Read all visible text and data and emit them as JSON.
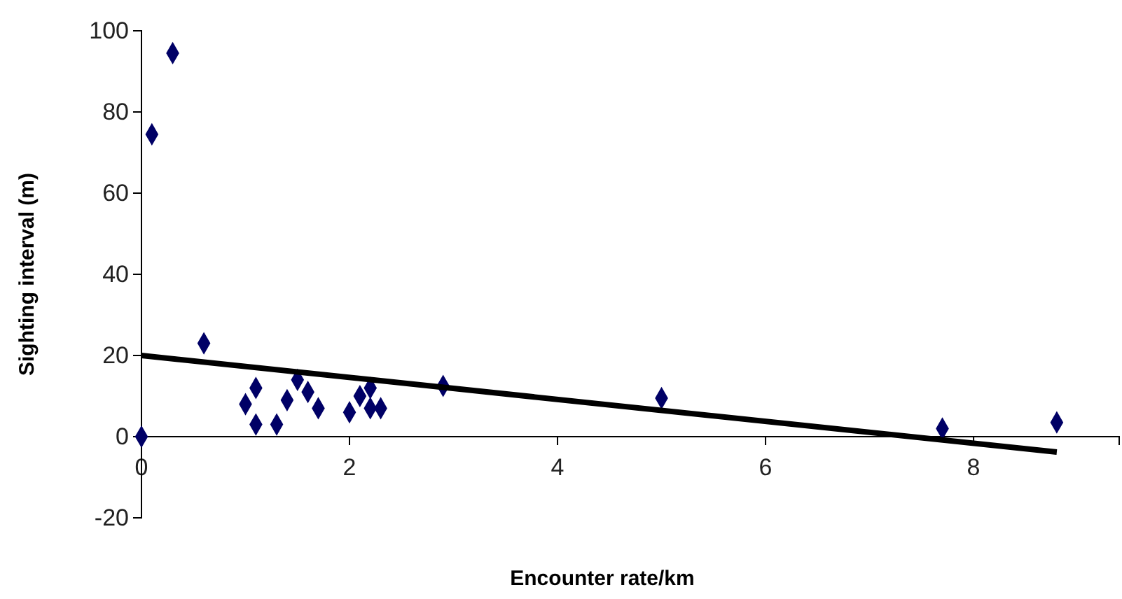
{
  "chart_data": {
    "type": "scatter",
    "xlabel": "Encounter rate/km",
    "ylabel": "Sighting interval (m)",
    "xlim": [
      0,
      9.4
    ],
    "xticks": [
      0,
      2,
      4,
      6,
      8
    ],
    "ylim": [
      -20,
      100
    ],
    "yticks": [
      -20,
      0,
      20,
      40,
      60,
      80,
      100
    ],
    "grid": false,
    "marker": "diamond",
    "series": [
      {
        "color": "#000066",
        "x": [
          0,
          0.1,
          0.3,
          0.6,
          1.0,
          1.1,
          1.1,
          1.3,
          1.4,
          1.5,
          1.6,
          1.7,
          2.0,
          2.1,
          2.2,
          2.2,
          2.3,
          2.9,
          5.0,
          7.7,
          8.8
        ],
        "values": [
          0,
          74.5,
          94.5,
          23,
          8,
          12,
          3,
          3,
          9,
          14,
          11,
          7,
          6,
          10,
          12,
          7,
          7,
          12.5,
          9.5,
          2,
          3.5
        ]
      },
      {
        "type": "line",
        "color": "#000000",
        "line_style": "solid",
        "marker": "none",
        "x": [
          0,
          8.8
        ],
        "values": [
          20,
          -3.8
        ]
      }
    ]
  }
}
